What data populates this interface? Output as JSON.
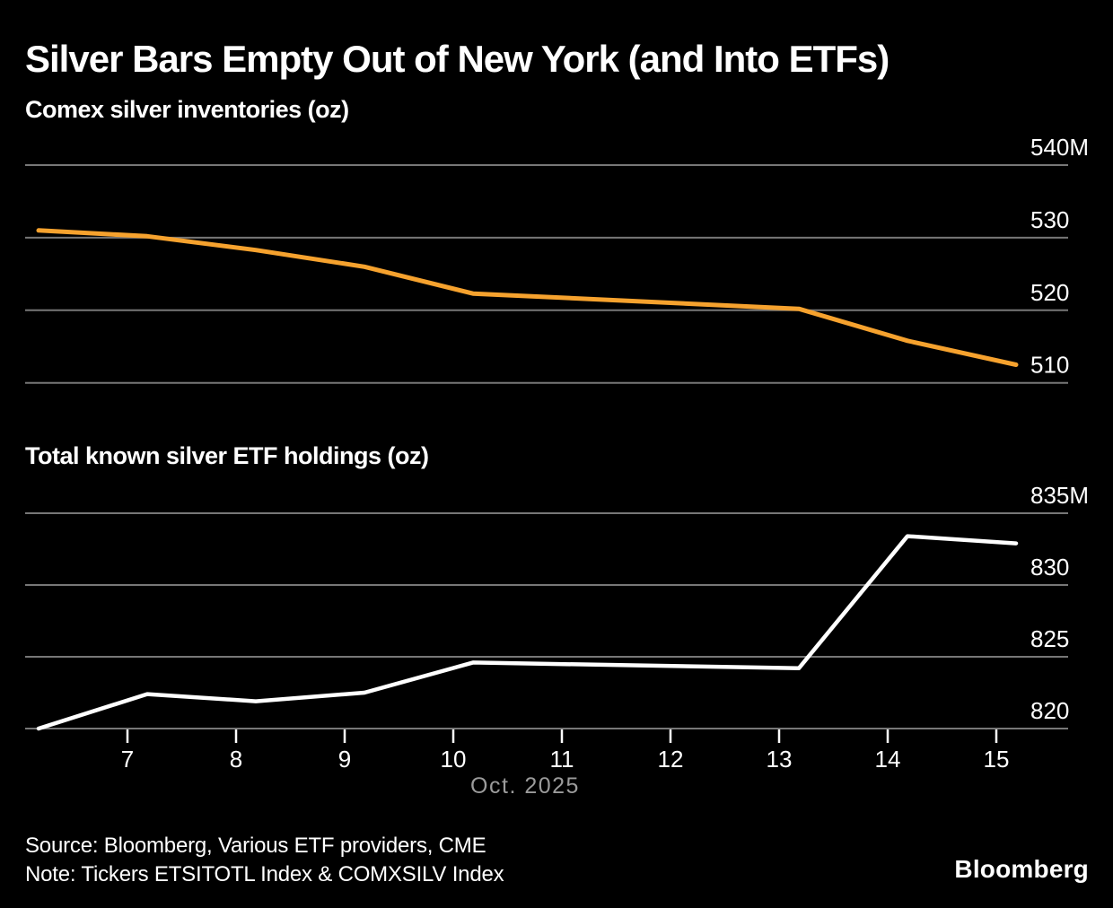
{
  "header": {
    "title": "Silver Bars Empty Out of New York (and Into ETFs)"
  },
  "colors": {
    "background": "#000000",
    "grid": "#777777",
    "tick_mark": "#ffffff",
    "axis_label": "#ffffff",
    "muted_label": "#9b9b9b",
    "comex_line": "#f6a22e",
    "etf_line": "#ffffff"
  },
  "xaxis": {
    "tick_days": [
      7,
      8,
      9,
      10,
      11,
      12,
      13,
      14,
      15
    ],
    "tick_labels": [
      "7",
      "8",
      "9",
      "10",
      "11",
      "12",
      "13",
      "14",
      "15"
    ],
    "label": "Oct. 2025"
  },
  "chart_data": [
    {
      "type": "line",
      "title": "Comex silver inventories (oz)",
      "unit": "million oz",
      "x_unit": "day of Oct. 2025",
      "x": [
        6,
        7,
        8,
        9,
        10,
        13,
        14,
        15
      ],
      "series": [
        {
          "name": "Comex silver inventories",
          "color_key": "comex_line",
          "values": [
            531.0,
            530.2,
            528.3,
            526.0,
            522.3,
            520.2,
            515.8,
            512.5
          ]
        }
      ],
      "yticks": [
        {
          "value": 540,
          "label": "540M"
        },
        {
          "value": 530,
          "label": "530"
        },
        {
          "value": 520,
          "label": "520"
        },
        {
          "value": 510,
          "label": "510"
        }
      ],
      "ylim": [
        508,
        541
      ],
      "grid": true,
      "legend": "none"
    },
    {
      "type": "line",
      "title": "Total known silver ETF holdings (oz)",
      "unit": "million oz",
      "x_unit": "day of Oct. 2025",
      "x": [
        6,
        7,
        8,
        9,
        10,
        13,
        14,
        15
      ],
      "series": [
        {
          "name": "Total known silver ETF holdings",
          "color_key": "etf_line",
          "values": [
            820.0,
            822.4,
            821.9,
            822.5,
            824.6,
            824.2,
            833.4,
            832.9
          ]
        }
      ],
      "yticks": [
        {
          "value": 835,
          "label": "835M"
        },
        {
          "value": 830,
          "label": "830"
        },
        {
          "value": 825,
          "label": "825"
        },
        {
          "value": 820,
          "label": "820"
        }
      ],
      "ylim": [
        818.5,
        836
      ],
      "grid": true,
      "legend": "none"
    }
  ],
  "footer": {
    "source": "Source: Bloomberg, Various ETF providers, CME",
    "note": "Note: Tickers ETSITOTL Index & COMXSILV Index",
    "logo": "Bloomberg"
  }
}
